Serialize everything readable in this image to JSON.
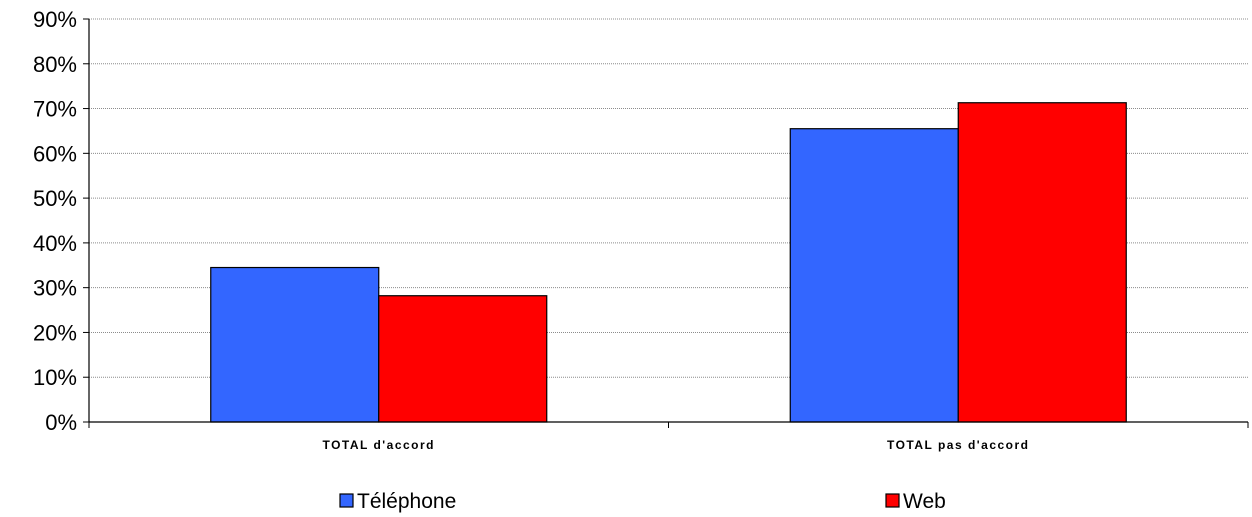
{
  "chart_data": {
    "type": "bar",
    "categories": [
      "TOTAL d'accord",
      "TOTAL pas d'accord"
    ],
    "series": [
      {
        "name": "Téléphone",
        "color": "#3366FF",
        "values": [
          34.5,
          65.5
        ]
      },
      {
        "name": "Web",
        "color": "#FF0000",
        "values": [
          28.2,
          71.3
        ]
      }
    ],
    "title": "",
    "xlabel": "",
    "ylabel": "",
    "ylim": [
      0,
      90
    ],
    "yticks": [
      0,
      10,
      20,
      30,
      40,
      50,
      60,
      70,
      80,
      90
    ],
    "ytick_suffix": "%",
    "grid": true,
    "legend": "bottom"
  }
}
